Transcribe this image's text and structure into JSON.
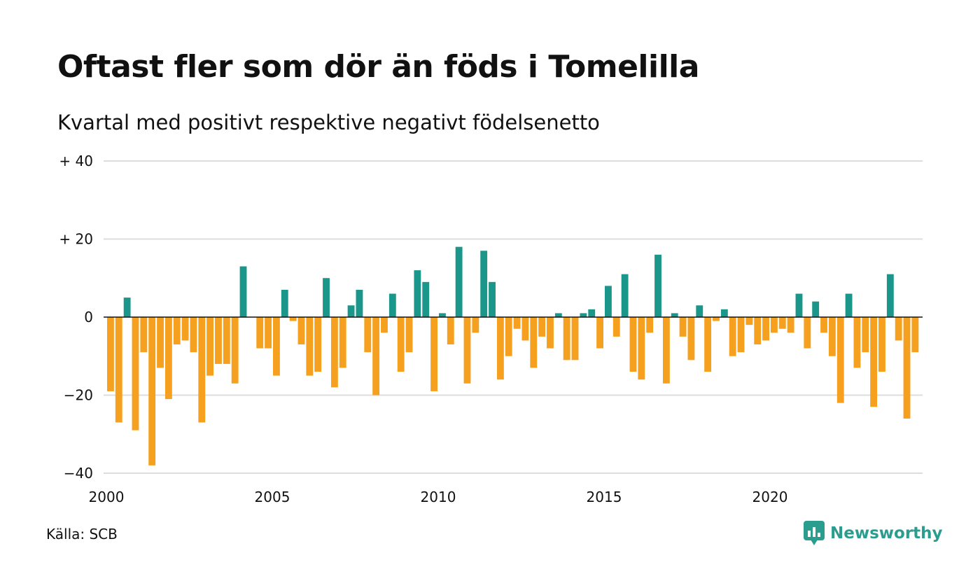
{
  "title": "Oftast fler som dör än föds i Tomelilla",
  "subtitle": "Kvartal med positivt respektive negativt födelsenetto",
  "source": "Källa: SCB",
  "logo": {
    "name": "Newsworthy",
    "icon": "newsworthy-logo-icon"
  },
  "colors": {
    "positive": "#1a968a",
    "negative": "#f5a01e",
    "grid": "#dddddd",
    "axis": "#111111"
  },
  "chart_data": {
    "type": "bar",
    "x_start": 2000,
    "periods_per_year": 4,
    "ylim": [
      -40,
      40
    ],
    "yticks": [
      {
        "value": 40,
        "label": "+ 40"
      },
      {
        "value": 20,
        "label": "+ 20"
      },
      {
        "value": 0,
        "label": "0"
      },
      {
        "value": -20,
        "label": "−20"
      },
      {
        "value": -40,
        "label": "−40"
      }
    ],
    "xticks": [
      {
        "value": 2000,
        "label": "2000"
      },
      {
        "value": 2005,
        "label": "2005"
      },
      {
        "value": 2010,
        "label": "2010"
      },
      {
        "value": 2015,
        "label": "2015"
      },
      {
        "value": 2020,
        "label": "2020"
      }
    ],
    "values": [
      -19,
      -27,
      5,
      -29,
      -9,
      -38,
      -13,
      -21,
      -7,
      -6,
      -9,
      -27,
      -15,
      -12,
      -12,
      -17,
      13,
      0,
      -8,
      -8,
      -15,
      7,
      -1,
      -7,
      -15,
      -14,
      10,
      -18,
      -13,
      3,
      7,
      -9,
      -20,
      -4,
      6,
      -14,
      -9,
      12,
      9,
      -19,
      1,
      -7,
      18,
      -17,
      -4,
      17,
      9,
      -16,
      -10,
      -3,
      -6,
      -13,
      -5,
      -8,
      1,
      -11,
      -11,
      1,
      2,
      -8,
      8,
      -5,
      11,
      -14,
      -16,
      -4,
      16,
      -17,
      1,
      -5,
      -11,
      3,
      -14,
      -1,
      2,
      -10,
      -9,
      -2,
      -7,
      -6,
      -4,
      -3,
      -4,
      6,
      -8,
      4,
      -4,
      -10,
      -22,
      6,
      -13,
      -9,
      -23,
      -14,
      11,
      -6,
      -26,
      -9
    ],
    "grid": true,
    "legend": "none"
  }
}
